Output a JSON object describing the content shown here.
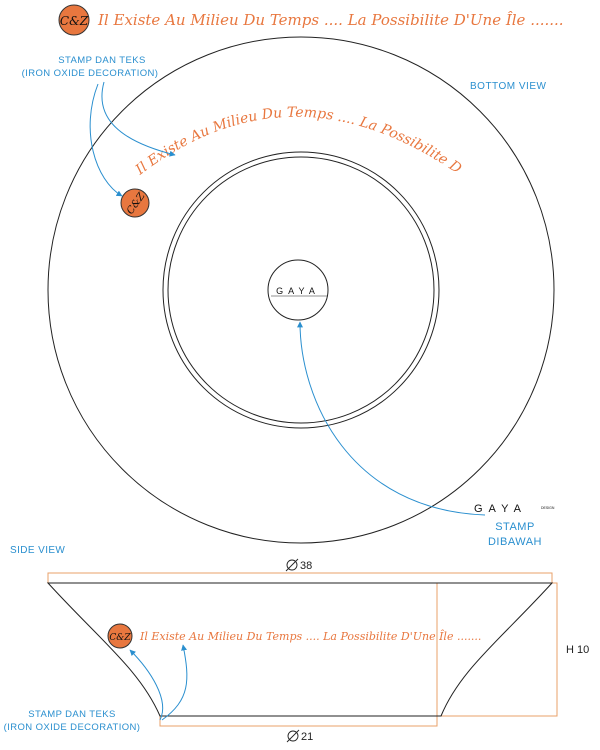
{
  "header": {
    "stamp_text": "C&Z",
    "inscription": "Il Existe Au Milieu Du Temps .... La Possibilite D'Une Île ......."
  },
  "bottom_view": {
    "title": "BOTTOM VIEW",
    "inscription": "Il Existe Au Milieu Du Temps .... La Possibilite D'Une Île .......",
    "stamp_text": "C&Z",
    "annotation_line1": "STAMP DAN TEKS",
    "annotation_line2": "(IRON OXIDE DECORATION)",
    "stamp_callout_line1": "STAMP",
    "stamp_callout_line2": "DIBAWAH",
    "center_mark": "GAYA",
    "logo_main": "GAYA",
    "logo_sub": "DESIGN"
  },
  "side_view": {
    "title": "SIDE VIEW",
    "top_diameter": "38",
    "bottom_diameter": "21",
    "height_label": "H 10",
    "stamp_text": "C&Z",
    "inscription": "Il Existe Au Milieu Du Temps .... La Possibilite D'Une Île .......",
    "annotation_line1": "STAMP DAN TEKS",
    "annotation_line2": "(IRON OXIDE DECORATION)"
  },
  "colors": {
    "accent": "#e8773f",
    "annotation": "#2a8fcf",
    "line": "#222222",
    "dimension": "#e8a06a"
  }
}
